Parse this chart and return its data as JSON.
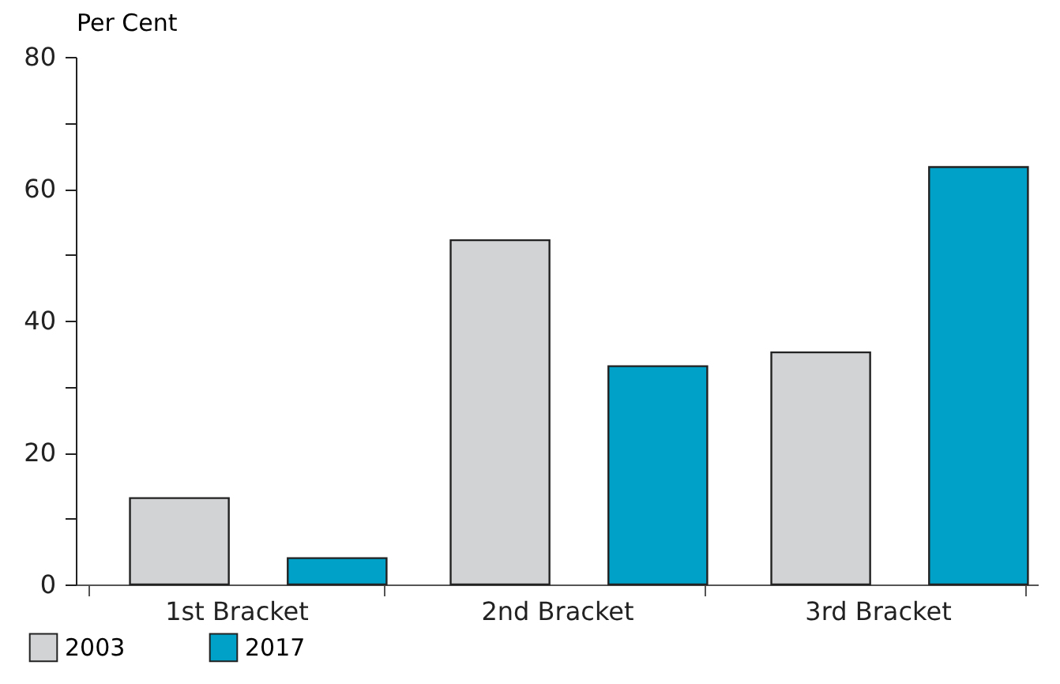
{
  "chart_data": {
    "type": "bar",
    "ylabel": "Per Cent",
    "categories": [
      "1st Bracket",
      "2nd Bracket",
      "3rd Bracket"
    ],
    "series": [
      {
        "name": "2003",
        "color": "#d1d3d4",
        "values": [
          13.1,
          52.2,
          35.2
        ]
      },
      {
        "name": "2017",
        "color": "#00a1c9",
        "values": [
          4.0,
          33.1,
          63.3
        ]
      }
    ],
    "ylim": [
      0,
      80
    ],
    "yticks": [
      0,
      {
        "value": 10,
        "label": null
      },
      20,
      {
        "value": 30,
        "label": null
      },
      40,
      {
        "value": 50,
        "label": null
      },
      60,
      {
        "value": 70,
        "label": null
      },
      80
    ],
    "grid": false,
    "legend": "bottom left"
  }
}
